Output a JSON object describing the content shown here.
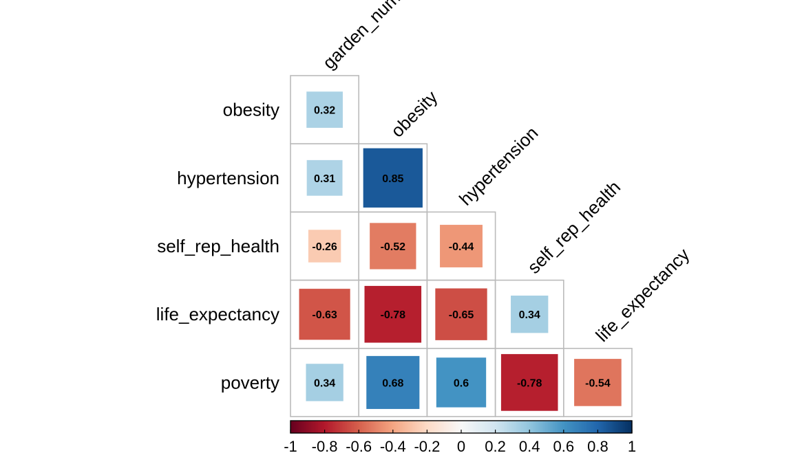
{
  "chart_data": {
    "type": "heatmap",
    "layout": "lower-triangle correlation matrix",
    "shape": "square",
    "column_labels": [
      "garden_num",
      "obesity",
      "hypertension",
      "self_rep_health",
      "life_expectancy"
    ],
    "row_labels": [
      "obesity",
      "hypertension",
      "self_rep_health",
      "life_expectancy",
      "poverty"
    ],
    "values": [
      [
        0.32,
        null,
        null,
        null,
        null
      ],
      [
        0.31,
        0.85,
        null,
        null,
        null
      ],
      [
        -0.26,
        -0.52,
        -0.44,
        null,
        null
      ],
      [
        -0.63,
        -0.78,
        -0.65,
        0.34,
        null
      ],
      [
        0.34,
        0.68,
        0.6,
        -0.78,
        -0.54
      ]
    ],
    "value_labels": [
      [
        "0.32",
        "",
        "",
        "",
        ""
      ],
      [
        "0.31",
        "0.85",
        "",
        "",
        ""
      ],
      [
        "-0.26",
        "-0.52",
        "-0.44",
        "",
        ""
      ],
      [
        "-0.63",
        "-0.78",
        "-0.65",
        "0.34",
        ""
      ],
      [
        "0.34",
        "0.68",
        "0.6",
        "-0.78",
        "-0.54"
      ]
    ],
    "colorbar": {
      "range": [
        -1,
        1
      ],
      "orientation": "horizontal",
      "placement": "bottom",
      "ticks": [
        "-1",
        "-0.8",
        "-0.6",
        "-0.4",
        "-0.2",
        "0",
        "0.2",
        "0.4",
        "0.6",
        "0.8",
        "1"
      ]
    },
    "colors": {
      "negative_end": "#67001F",
      "neutral": "#F7F7F7",
      "positive_end": "#053061",
      "cell_border": "#BBBBBB",
      "colorbar_border": "#000000"
    }
  }
}
